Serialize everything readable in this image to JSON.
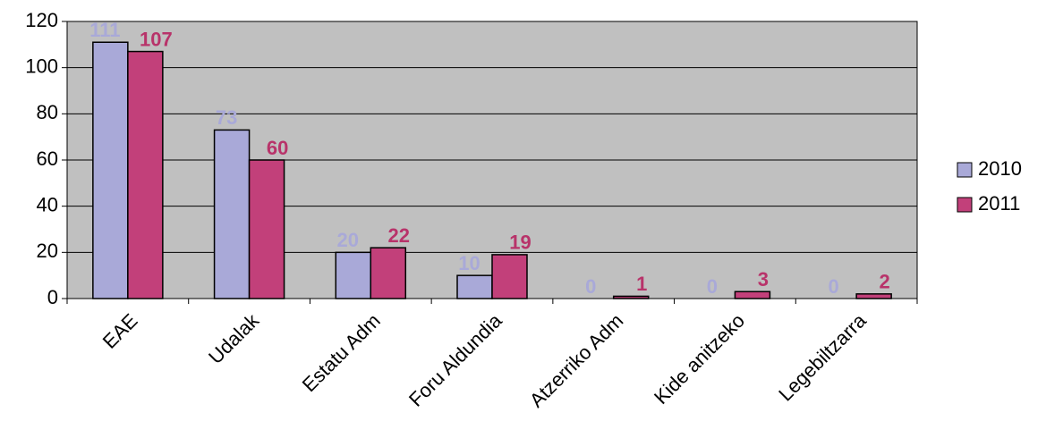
{
  "chart_data": {
    "type": "bar",
    "categories": [
      "EAE",
      "Udalak",
      "Estatu Adm",
      "Foru Aldundia",
      "Atzerriko Adm",
      "Kide anitzeko",
      "Legebiltzarra"
    ],
    "series": [
      {
        "name": "2010",
        "color": "#a9a9d8",
        "label_color": "#a9a9d8",
        "values": [
          111,
          73,
          20,
          10,
          0,
          0,
          0
        ]
      },
      {
        "name": "2011",
        "color": "#c2407a",
        "label_color": "#b8336a",
        "values": [
          107,
          60,
          22,
          19,
          1,
          3,
          2
        ]
      }
    ],
    "ylim": [
      0,
      120
    ],
    "yticks": [
      0,
      20,
      40,
      60,
      80,
      100,
      120
    ],
    "grid": true,
    "plot_background": "#c0c0c0",
    "legend": "right"
  }
}
